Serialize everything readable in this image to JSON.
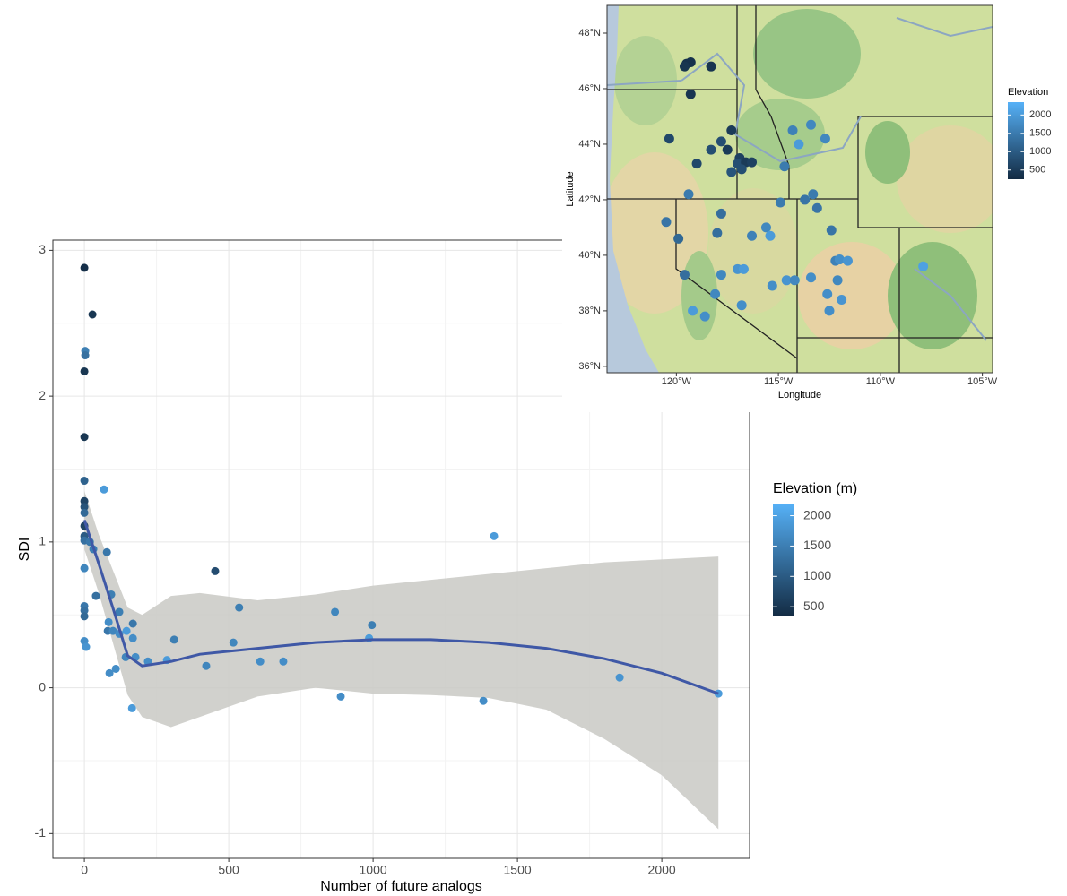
{
  "chart_data": [
    {
      "type": "scatter",
      "x_label": "Number of future analogs",
      "y_label": "SDI",
      "xlim": [
        -109,
        2304
      ],
      "ylim": [
        -1.17,
        3.07
      ],
      "xticks": [
        0,
        500,
        1000,
        1500,
        2000
      ],
      "yticks": [
        -1,
        0,
        1,
        2,
        3
      ],
      "grid": true,
      "x": [
        0,
        28,
        3,
        3,
        0,
        0,
        0,
        68,
        0,
        0,
        0,
        0,
        0,
        0,
        19,
        31,
        78,
        0,
        453,
        1419,
        40,
        93,
        0,
        0,
        0,
        84,
        168,
        121,
        536,
        868,
        996,
        986,
        81,
        99,
        121,
        146,
        168,
        311,
        516,
        0,
        6,
        143,
        177,
        220,
        286,
        609,
        689,
        422,
        109,
        87,
        165,
        888,
        1382,
        1854,
        2196
      ],
      "values": [
        2.88,
        2.56,
        2.31,
        2.28,
        2.17,
        1.72,
        1.42,
        1.36,
        1.28,
        1.24,
        1.2,
        1.11,
        1.04,
        1.01,
        1.0,
        0.95,
        0.93,
        0.82,
        0.8,
        1.04,
        0.63,
        0.64,
        0.56,
        0.53,
        0.49,
        0.45,
        0.44,
        0.52,
        0.55,
        0.52,
        0.43,
        0.34,
        0.39,
        0.39,
        0.37,
        0.39,
        0.34,
        0.33,
        0.31,
        0.32,
        0.28,
        0.21,
        0.21,
        0.18,
        0.19,
        0.18,
        0.18,
        0.15,
        0.13,
        0.1,
        -0.14,
        -0.06,
        -0.09,
        0.07,
        -0.04
      ],
      "elevation": [
        400,
        500,
        1500,
        1300,
        500,
        500,
        1100,
        1900,
        700,
        900,
        1200,
        700,
        1000,
        1300,
        1400,
        1500,
        1400,
        1600,
        800,
        1900,
        1300,
        1500,
        1400,
        1300,
        1200,
        1700,
        1400,
        1500,
        1500,
        1600,
        1500,
        1900,
        1400,
        1600,
        1700,
        1900,
        1700,
        1500,
        1600,
        1700,
        1800,
        1600,
        1700,
        1700,
        1900,
        1700,
        1700,
        1600,
        1700,
        1700,
        1900,
        1700,
        1700,
        1800,
        1900
      ],
      "fit": {
        "color": "#3f58a6",
        "band_color": "#c9c9c4",
        "x": [
          0,
          50,
          100,
          150,
          200,
          300,
          400,
          600,
          800,
          1000,
          1200,
          1400,
          1600,
          1800,
          2000,
          2196
        ],
        "values": [
          1.15,
          0.85,
          0.54,
          0.22,
          0.15,
          0.18,
          0.23,
          0.27,
          0.31,
          0.33,
          0.33,
          0.31,
          0.27,
          0.2,
          0.1,
          -0.04
        ],
        "lower": [
          0.95,
          0.65,
          0.3,
          -0.05,
          -0.2,
          -0.27,
          -0.2,
          -0.06,
          0.0,
          -0.04,
          -0.05,
          -0.07,
          -0.15,
          -0.35,
          -0.6,
          -0.97
        ],
        "upper": [
          1.35,
          1.05,
          0.8,
          0.55,
          0.5,
          0.63,
          0.65,
          0.6,
          0.64,
          0.7,
          0.74,
          0.78,
          0.82,
          0.86,
          0.88,
          0.9
        ]
      },
      "colorbar": {
        "title": "Elevation (m)",
        "clim": [
          340,
          2200
        ],
        "ticks": [
          500,
          1000,
          1500,
          2000
        ],
        "low_color": "#132b43",
        "high_color": "#56b1f7"
      }
    },
    {
      "type": "map",
      "x_label": "Longitude",
      "y_label": "Latitude",
      "xlim": [
        -123.4,
        -104.5
      ],
      "ylim": [
        35.77,
        49.0
      ],
      "grid": false,
      "xticks": [
        {
          "value": -120,
          "label": "120°W"
        },
        {
          "value": -115,
          "label": "115°W"
        },
        {
          "value": -110,
          "label": "110°W"
        },
        {
          "value": -105,
          "label": "105°W"
        }
      ],
      "yticks": [
        {
          "value": 36,
          "label": "36°N"
        },
        {
          "value": 38,
          "label": "38°N"
        },
        {
          "value": 40,
          "label": "40°N"
        },
        {
          "value": 42,
          "label": "42°N"
        },
        {
          "value": 44,
          "label": "44°N"
        },
        {
          "value": 46,
          "label": "46°N"
        },
        {
          "value": 48,
          "label": "48°N"
        }
      ],
      "x": [
        -119.5,
        -119.3,
        -119.6,
        -118.3,
        -119.3,
        -120.35,
        -117.3,
        -117.8,
        -117.5,
        -118.3,
        -119.0,
        -116.9,
        -117.0,
        -116.6,
        -116.3,
        -117.3,
        -116.8,
        -114.7,
        -114.3,
        -114.0,
        -113.4,
        -112.7,
        -119.4,
        -114.9,
        -113.7,
        -113.3,
        -113.1,
        -120.5,
        -117.8,
        -119.9,
        -118.0,
        -116.3,
        -115.6,
        -115.4,
        -112.4,
        -119.6,
        -117.8,
        -117.0,
        -116.7,
        -115.3,
        -114.6,
        -114.2,
        -113.4,
        -112.2,
        -112.0,
        -111.6,
        -107.9,
        -118.1,
        -116.8,
        -112.6,
        -112.1,
        -111.9,
        -112.5,
        -119.2,
        -118.6
      ],
      "values": [
        46.9,
        46.95,
        46.8,
        46.8,
        45.8,
        44.2,
        44.5,
        44.1,
        43.8,
        43.8,
        43.3,
        43.5,
        43.3,
        43.35,
        43.35,
        43.0,
        43.1,
        43.2,
        44.5,
        44.0,
        44.7,
        44.2,
        42.2,
        41.9,
        42.0,
        42.2,
        41.7,
        41.2,
        41.5,
        40.6,
        40.8,
        40.7,
        41.0,
        40.7,
        40.9,
        39.3,
        39.3,
        39.5,
        39.5,
        38.9,
        39.1,
        39.1,
        39.2,
        39.8,
        39.85,
        39.8,
        39.6,
        38.6,
        38.2,
        38.6,
        39.1,
        38.4,
        38.0,
        38.0,
        37.8
      ],
      "elevation": [
        350,
        350,
        400,
        400,
        400,
        700,
        500,
        800,
        500,
        800,
        700,
        600,
        800,
        500,
        600,
        900,
        800,
        1500,
        1600,
        2000,
        1700,
        1700,
        1500,
        1500,
        1400,
        1500,
        1400,
        1400,
        1300,
        1200,
        1300,
        1600,
        1700,
        2000,
        1400,
        1300,
        1700,
        1900,
        2000,
        1800,
        1900,
        1700,
        1800,
        1600,
        1800,
        1900,
        2100,
        1700,
        1800,
        1800,
        1700,
        1900,
        1800,
        2000,
        1800
      ],
      "colorbar": {
        "title": "Elevation",
        "clim": [
          250,
          2350
        ],
        "ticks": [
          500,
          1000,
          1500,
          2000
        ],
        "low_color": "#132b43",
        "high_color": "#56b1f7"
      }
    }
  ]
}
